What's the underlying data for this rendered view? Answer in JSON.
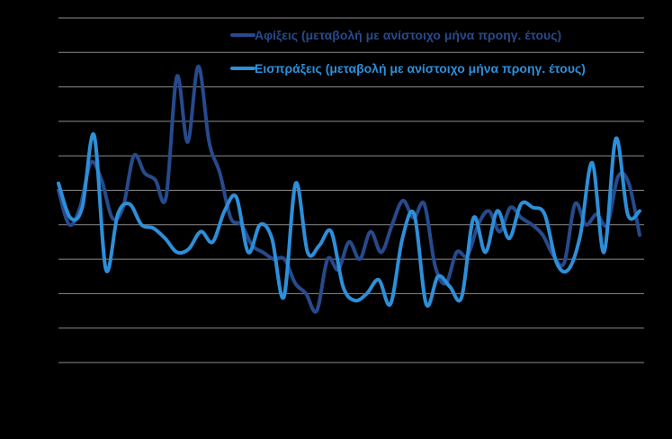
{
  "chart_data": {
    "type": "line",
    "title": "",
    "xlabel": "",
    "ylabel": "",
    "ylim": [
      -40,
      60
    ],
    "gridline_values": [
      60,
      50,
      40,
      30,
      20,
      10,
      0,
      -10,
      -20,
      -30,
      -40
    ],
    "grid": true,
    "legend_position": "top-right",
    "background_color": "#000000",
    "gridline_color": "#8c8c8c",
    "series": [
      {
        "name": "Αφίξεις (μεταβολή με ανίστοιχο μήνα προηγ. έτους)",
        "color": "#274a8c",
        "values": [
          10,
          0,
          5,
          18,
          13,
          2,
          5,
          20,
          15,
          13,
          8,
          43,
          24,
          46,
          24,
          15,
          2,
          0,
          -6,
          -8,
          -10,
          -10,
          -17,
          -20,
          -25,
          -10,
          -13,
          -5,
          -10,
          -2,
          -8,
          0,
          7,
          2,
          6,
          -12,
          -17,
          -8,
          -9,
          0,
          4,
          -2,
          5,
          2,
          0,
          -3,
          -9,
          -11,
          6,
          0,
          3,
          0,
          14,
          12,
          -3
        ]
      },
      {
        "name": "Εισπράξεις (μεταβολή με ανίστοιχο μήνα προηγ. έτους)",
        "color": "#2d8fd9",
        "values": [
          12,
          2,
          5,
          26,
          -13,
          3,
          6,
          0,
          -1,
          -4,
          -8,
          -7,
          -2,
          -5,
          4,
          8,
          -8,
          0,
          -4,
          -21,
          12,
          -8,
          -6,
          -2,
          -18,
          -22,
          -20,
          -16,
          -23,
          -4,
          3,
          -23,
          -15,
          -18,
          -21,
          2,
          -8,
          4,
          -4,
          6,
          5,
          3,
          -11,
          -13,
          -3,
          18,
          -8,
          25,
          3,
          4
        ]
      }
    ]
  }
}
